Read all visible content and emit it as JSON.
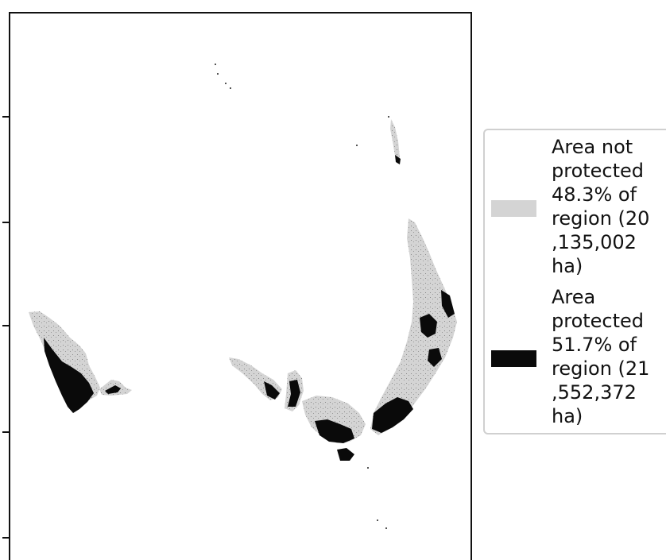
{
  "colors": {
    "not_protected": "#d4d4d4",
    "protected": "#0a0a0a",
    "frame": "#111111",
    "legend_border": "#d0d0d0"
  },
  "legend": {
    "items": [
      {
        "key": "not_protected",
        "lines": [
          "Area not",
          "protected",
          "48.3% of",
          "region (20",
          ",135,002",
          "ha)"
        ]
      },
      {
        "key": "protected",
        "lines": [
          "Area",
          "protected",
          "51.7% of",
          "region (21",
          ",552,372",
          "ha)"
        ]
      }
    ]
  }
}
